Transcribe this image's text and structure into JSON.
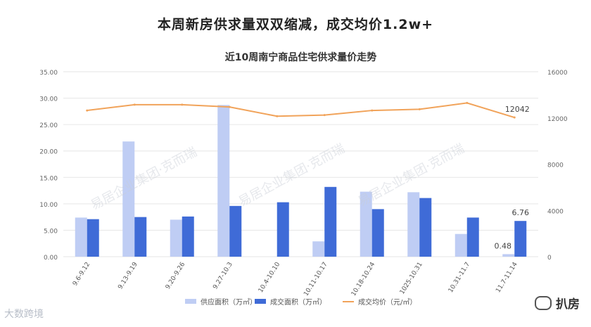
{
  "page": {
    "headline": "本周新房供求量双双缩减，成交均价1.2w+",
    "watermark_bottom_left": "大数跨境",
    "watermark_bottom_right": "扒房",
    "watermark_diagonal": "易居企业集团·克而瑞"
  },
  "chart_data": {
    "type": "bar",
    "title": "近10周南宁商品住宅供求量价走势",
    "categories": [
      "9.6-9.12",
      "9.13-9.19",
      "9.20-9.26",
      "9.27-10.3",
      "10.4-10.10",
      "10.11-10.17",
      "10.18-10.24",
      "1025-10.31",
      "10.31-11.7",
      "11.7-11.14"
    ],
    "series": [
      {
        "name": "供应面积（万㎡）",
        "kind": "bar",
        "axis": "left",
        "color": "#bfcdf4",
        "values": [
          7.4,
          21.8,
          7.0,
          28.7,
          0,
          2.9,
          12.3,
          12.2,
          4.3,
          0.48
        ]
      },
      {
        "name": "成交面积（万㎡）",
        "kind": "bar",
        "axis": "left",
        "color": "#3f6bd7",
        "values": [
          7.1,
          7.5,
          7.6,
          9.6,
          10.3,
          13.2,
          9.0,
          11.1,
          7.4,
          6.76
        ]
      },
      {
        "name": "成交均价（元/㎡）",
        "kind": "line",
        "axis": "right",
        "color": "#f1a35a",
        "values": [
          12650,
          13150,
          13150,
          12950,
          12150,
          12250,
          12650,
          12750,
          13300,
          12042
        ]
      }
    ],
    "y_left": {
      "min": 0,
      "max": 35,
      "ticks": [
        "0.00",
        "5.00",
        "10.00",
        "15.00",
        "20.00",
        "25.00",
        "30.00",
        "35.00"
      ]
    },
    "y_right": {
      "min": 0,
      "max": 16000,
      "ticks": [
        "0",
        "4000",
        "8000",
        "12000",
        "16000"
      ]
    },
    "data_labels": [
      {
        "series": 0,
        "index": 9,
        "text": "0.48"
      },
      {
        "series": 1,
        "index": 9,
        "text": "6.76"
      },
      {
        "series": 2,
        "index": 9,
        "text": "12042"
      }
    ],
    "grid": "horizontal",
    "legend": "bottom"
  }
}
